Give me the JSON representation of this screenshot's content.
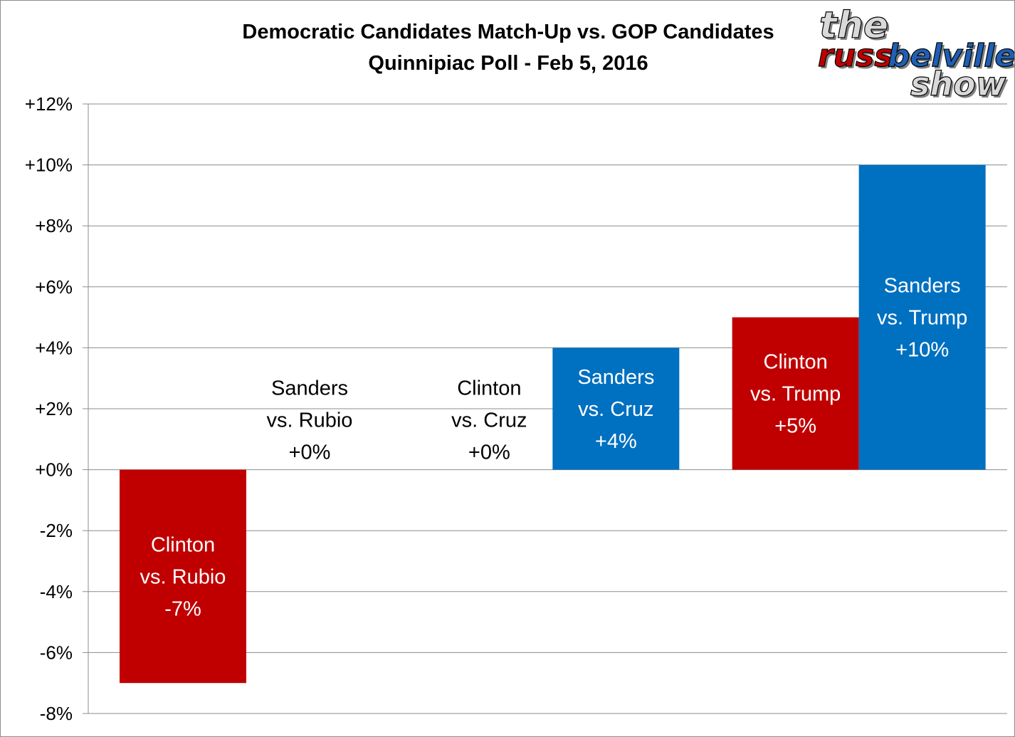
{
  "chart_data": {
    "type": "bar",
    "title": "Democratic Candidates Match-Up vs. GOP Candidates",
    "subtitle": "Quinnipiac Poll - Feb 5, 2016",
    "xlabel": "",
    "ylabel": "",
    "ylim": [
      -8,
      12
    ],
    "ytick_step": 2,
    "yticks": [
      "+12%",
      "+10%",
      "+8%",
      "+6%",
      "+4%",
      "+2%",
      "+0%",
      "-2%",
      "-4%",
      "-6%",
      "-8%"
    ],
    "grid": true,
    "legend": "none",
    "categories": [
      "Clinton vs. Rubio",
      "Sanders vs. Rubio",
      "Clinton vs. Cruz",
      "Sanders vs. Cruz",
      "Clinton vs. Trump",
      "Sanders vs. Trump"
    ],
    "values": [
      -7,
      0,
      0,
      4,
      5,
      10
    ],
    "bar_labels": [
      [
        "Clinton",
        "vs. Rubio",
        "-7%"
      ],
      [
        "Sanders",
        "vs. Rubio",
        "+0%"
      ],
      [
        "Clinton",
        "vs. Cruz",
        "+0%"
      ],
      [
        "Sanders",
        "vs. Cruz",
        "+4%"
      ],
      [
        "Clinton",
        "vs. Trump",
        "+5%"
      ],
      [
        "Sanders",
        "vs. Trump",
        "+10%"
      ]
    ],
    "colors": {
      "Clinton": "#c00000",
      "Sanders": "#0070c0",
      "grid": "#8c8c8c",
      "label_on_bar": "#ffffff",
      "label_off_bar": "#000000"
    }
  },
  "logo": {
    "line1": "the",
    "line2a": "russ",
    "line2b": "belville",
    "line3": "show",
    "colors": {
      "dark": "#1a1a1a",
      "red": "#c00000",
      "blue": "#1f5fb4",
      "light": "#d9d9d9"
    }
  }
}
